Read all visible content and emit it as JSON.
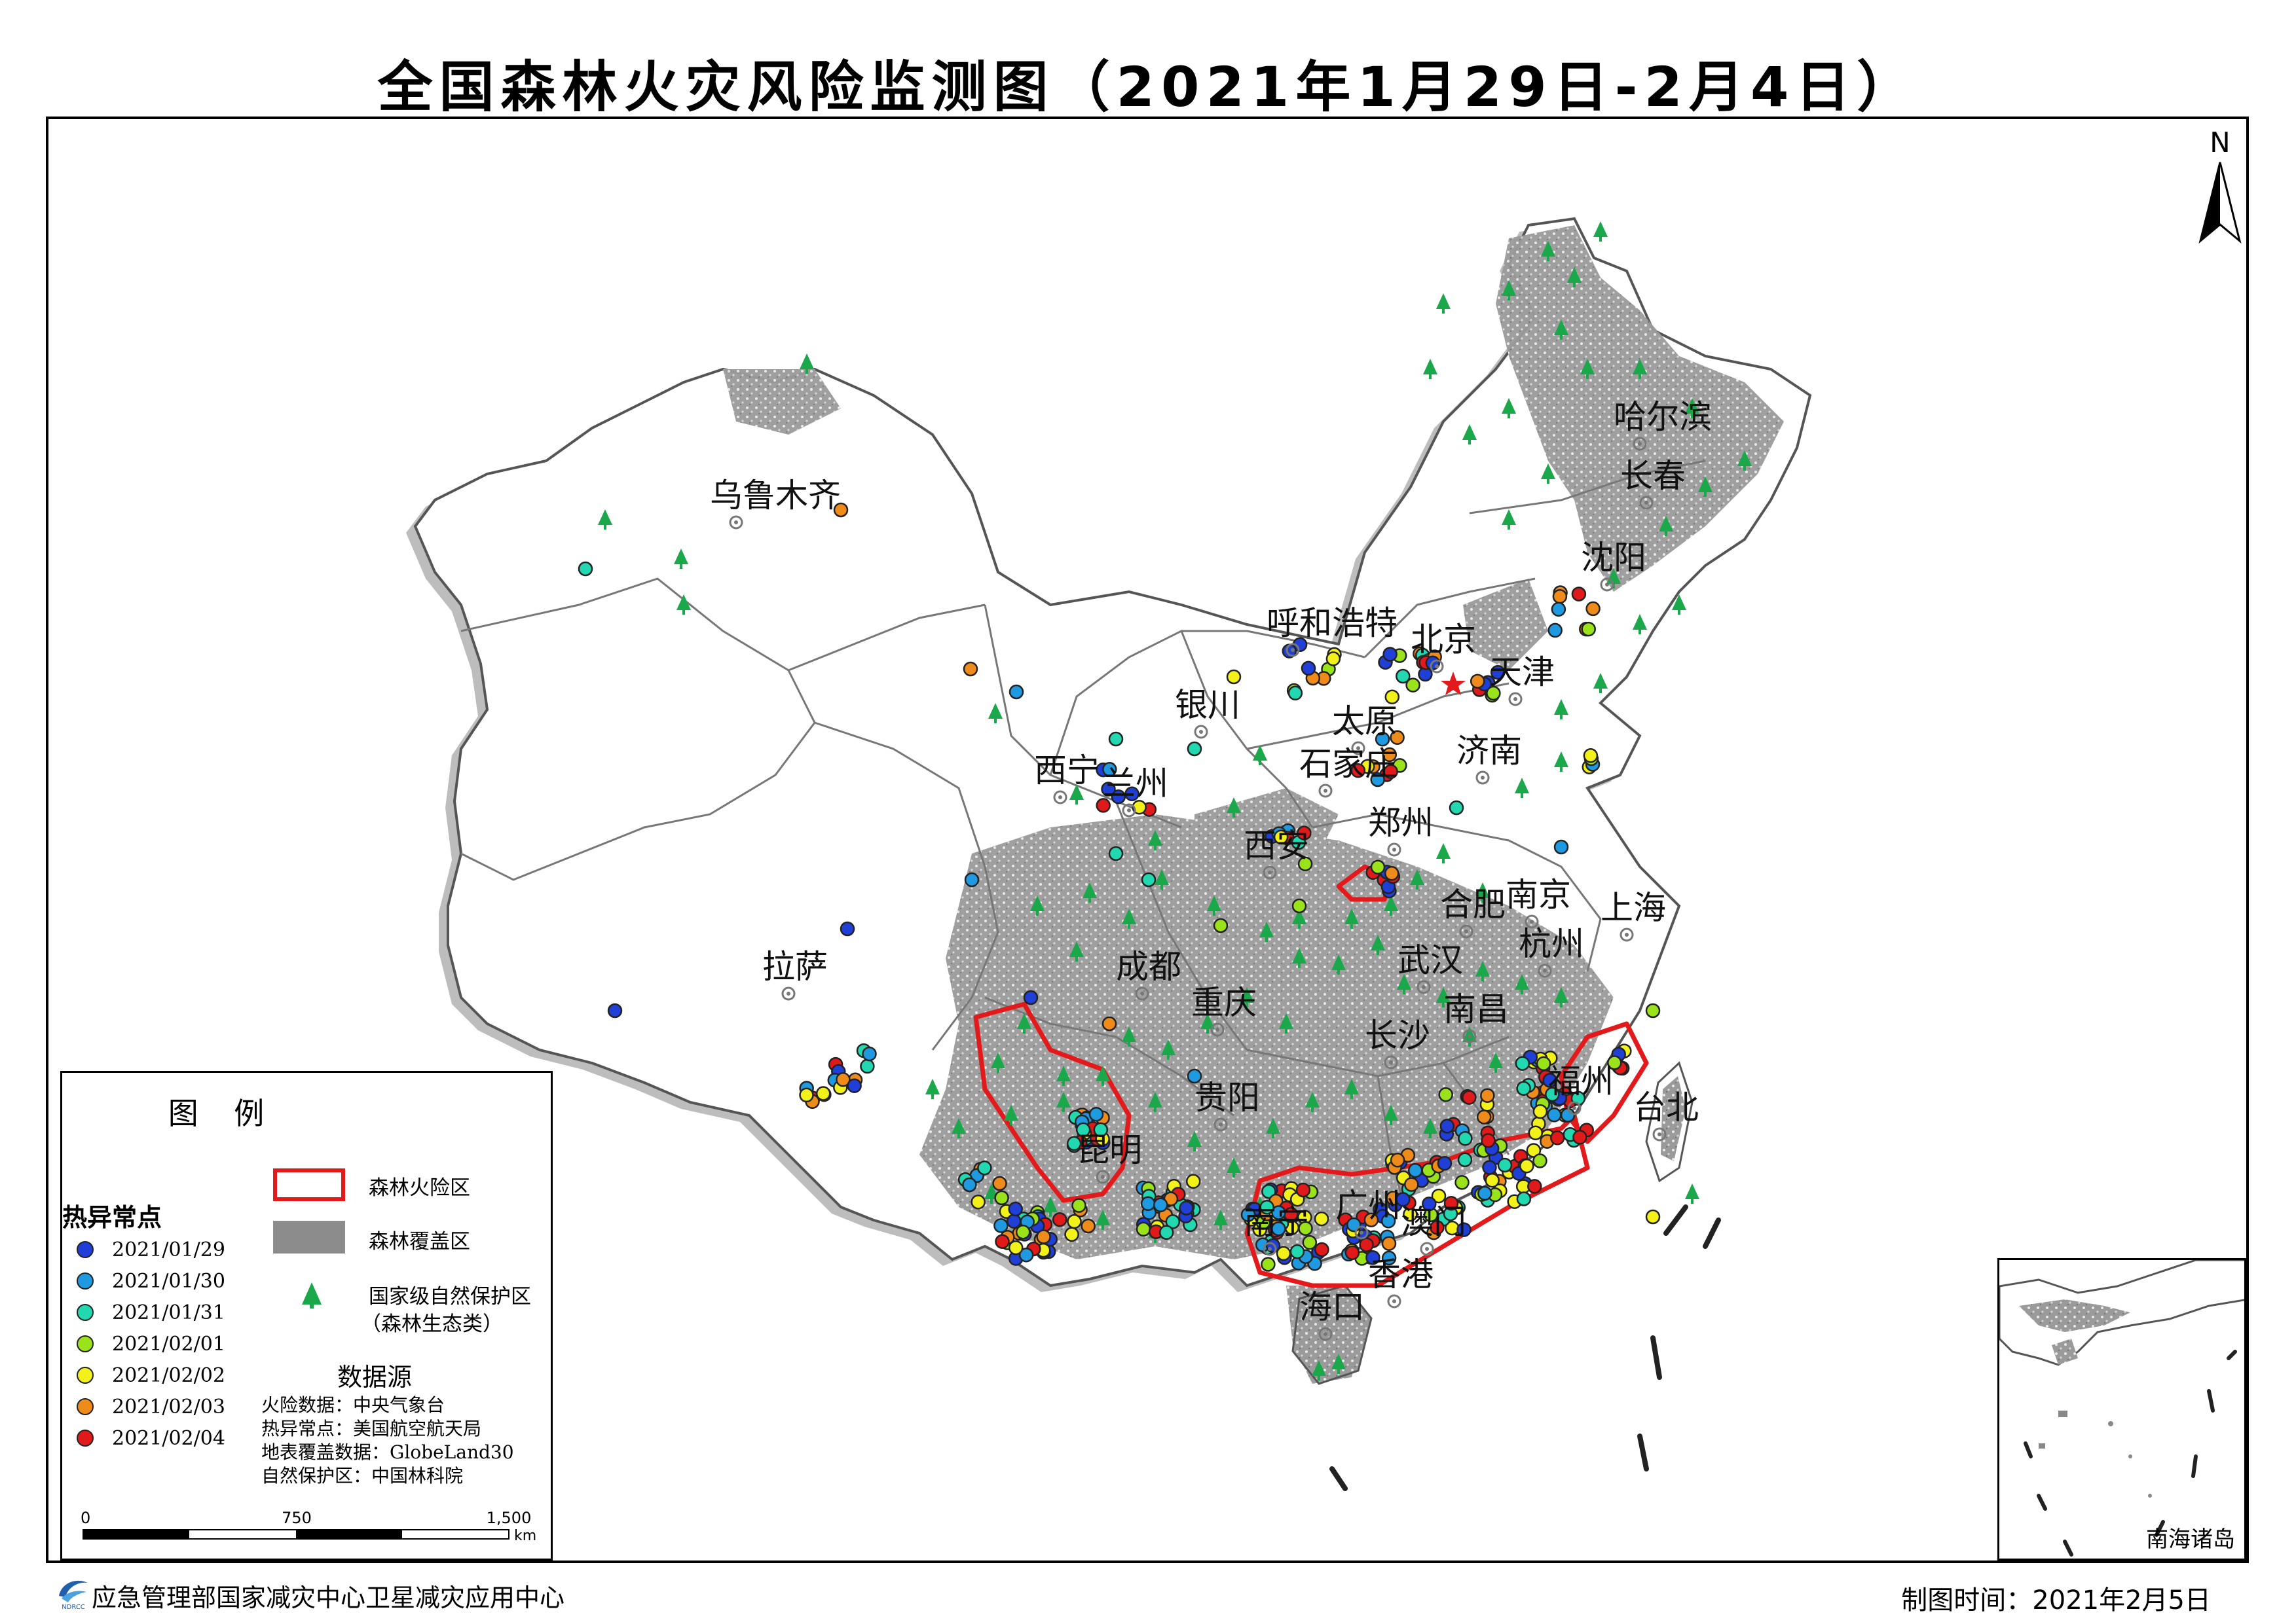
{
  "title": "全国森林火灾风险监测图（2021年1月29日-2月4日）",
  "north_label": "N",
  "cities": [
    {
      "name": "乌鲁木齐"
    },
    {
      "name": "哈尔滨"
    },
    {
      "name": "长春"
    },
    {
      "name": "沈阳"
    },
    {
      "name": "呼和浩特"
    },
    {
      "name": "北京"
    },
    {
      "name": "天津"
    },
    {
      "name": "银川"
    },
    {
      "name": "太原"
    },
    {
      "name": "石家庄"
    },
    {
      "name": "济南"
    },
    {
      "name": "西宁"
    },
    {
      "name": "兰州"
    },
    {
      "name": "郑州"
    },
    {
      "name": "西安"
    },
    {
      "name": "合肥"
    },
    {
      "name": "南京"
    },
    {
      "name": "上海"
    },
    {
      "name": "杭州"
    },
    {
      "name": "拉萨"
    },
    {
      "name": "成都"
    },
    {
      "name": "武汉"
    },
    {
      "name": "重庆"
    },
    {
      "name": "南昌"
    },
    {
      "name": "长沙"
    },
    {
      "name": "福州"
    },
    {
      "name": "台北"
    },
    {
      "name": "贵阳"
    },
    {
      "name": "昆明"
    },
    {
      "name": "南宁"
    },
    {
      "name": "广州"
    },
    {
      "name": "澳门"
    },
    {
      "name": "香港"
    },
    {
      "name": "海口"
    }
  ],
  "legend": {
    "title": "图  例",
    "hotspot_title": "热异常点",
    "hotspot_dates": [
      {
        "label": "2021/01/29",
        "color": "#1f3fd6"
      },
      {
        "label": "2021/01/30",
        "color": "#1f9ae0"
      },
      {
        "label": "2021/01/31",
        "color": "#21d8b0"
      },
      {
        "label": "2021/02/01",
        "color": "#9ae21a"
      },
      {
        "label": "2021/02/02",
        "color": "#f2f21a"
      },
      {
        "label": "2021/02/03",
        "color": "#ef8b1a"
      },
      {
        "label": "2021/02/04",
        "color": "#e01a1a"
      }
    ],
    "risk_area_label": "森林火险区",
    "risk_area_color": "#e31a1c",
    "forest_label": "森林覆盖区",
    "forest_color": "#8c8c8c",
    "reserve_label": "国家级自然保护区",
    "reserve_sublabel": "（森林生态类）",
    "reserve_color": "#1aa84b",
    "data_source_title": "数据源",
    "data_sources": [
      "火险数据：中央气象台",
      "热异常点：美国航空航天局",
      "地表覆盖数据：GlobeLand30",
      "自然保护区：中国林科院"
    ],
    "scale_ticks": [
      "0",
      "750",
      "1,500"
    ],
    "scale_unit": "km"
  },
  "inset_label": "南海诸岛",
  "footer": {
    "org": "应急管理部国家减灾中心卫星减灾应用中心",
    "logo_text": "NDRCC",
    "date": "制图时间：2021年2月5日"
  }
}
